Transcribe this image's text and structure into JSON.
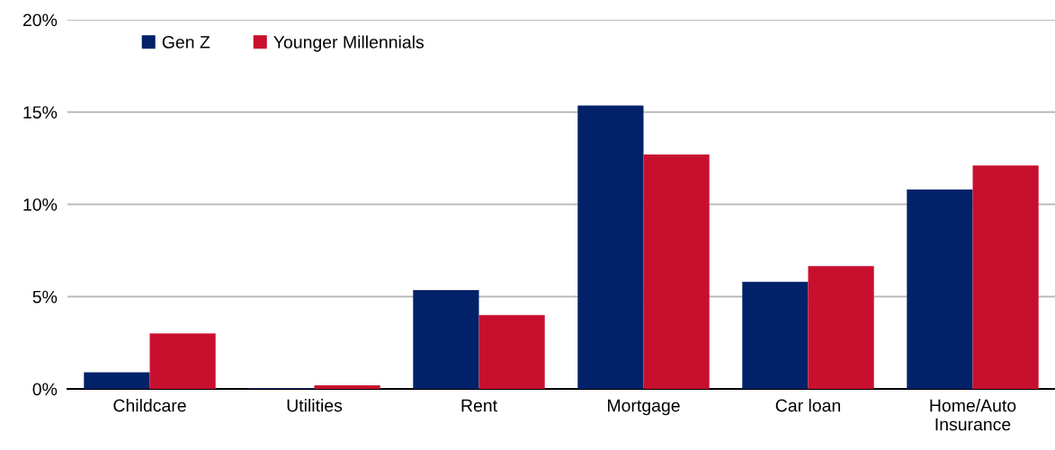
{
  "chart_data": {
    "type": "bar",
    "categories": [
      "Childcare",
      "Utilities",
      "Rent",
      "Mortgage",
      "Car loan",
      "Home/Auto\nInsurance"
    ],
    "series": [
      {
        "name": "Gen Z",
        "color": "#012169",
        "values": [
          0.9,
          0.05,
          5.35,
          15.35,
          5.8,
          10.8
        ]
      },
      {
        "name": "Younger Millennials",
        "color": "#c8102e",
        "values": [
          3.0,
          0.2,
          4.0,
          12.7,
          6.65,
          12.1
        ]
      }
    ],
    "ylim": [
      0,
      20
    ],
    "yticks": [
      {
        "value": 0,
        "label": "0%"
      },
      {
        "value": 5,
        "label": "5%"
      },
      {
        "value": 10,
        "label": "10%"
      },
      {
        "value": 15,
        "label": "15%"
      },
      {
        "value": 20,
        "label": "20%"
      }
    ],
    "grid": "y",
    "legend": "top left"
  }
}
